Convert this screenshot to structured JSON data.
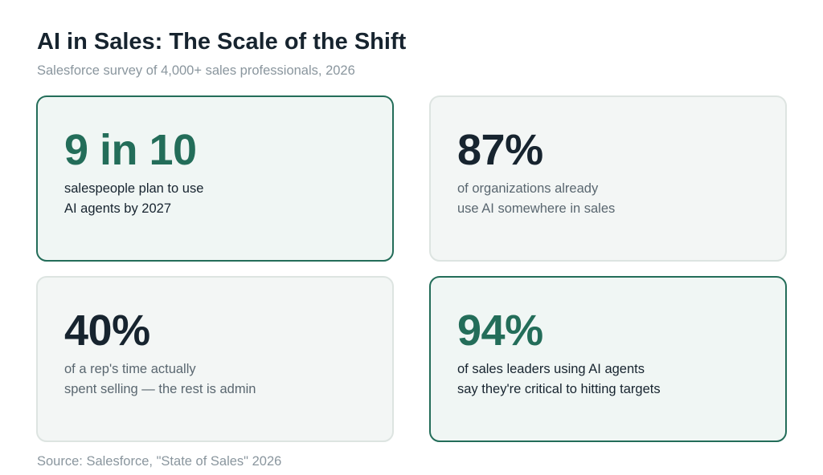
{
  "title": "AI in Sales: The Scale of the Shift",
  "subtitle": "Salesforce survey of 4,000+ sales professionals, 2026",
  "colors": {
    "accent": "#236d59",
    "dark_text": "#17242f",
    "muted_text": "#8a969e",
    "card_bg": "#f3f6f5"
  },
  "cards": [
    {
      "stat": "9 in 10",
      "lines": [
        "salespeople plan to use",
        "AI agents by 2027"
      ],
      "highlighted": true
    },
    {
      "stat": "87%",
      "lines": [
        "of organizations already",
        "use AI somewhere in sales"
      ],
      "highlighted": false
    },
    {
      "stat": "40%",
      "lines": [
        "of a rep's time actually",
        "spent selling — the rest is admin"
      ],
      "highlighted": false
    },
    {
      "stat": "94%",
      "lines": [
        "of sales leaders using AI agents",
        "say they're critical to hitting targets"
      ],
      "highlighted": true
    }
  ],
  "source": "Source: Salesforce, \"State of Sales\" 2026"
}
